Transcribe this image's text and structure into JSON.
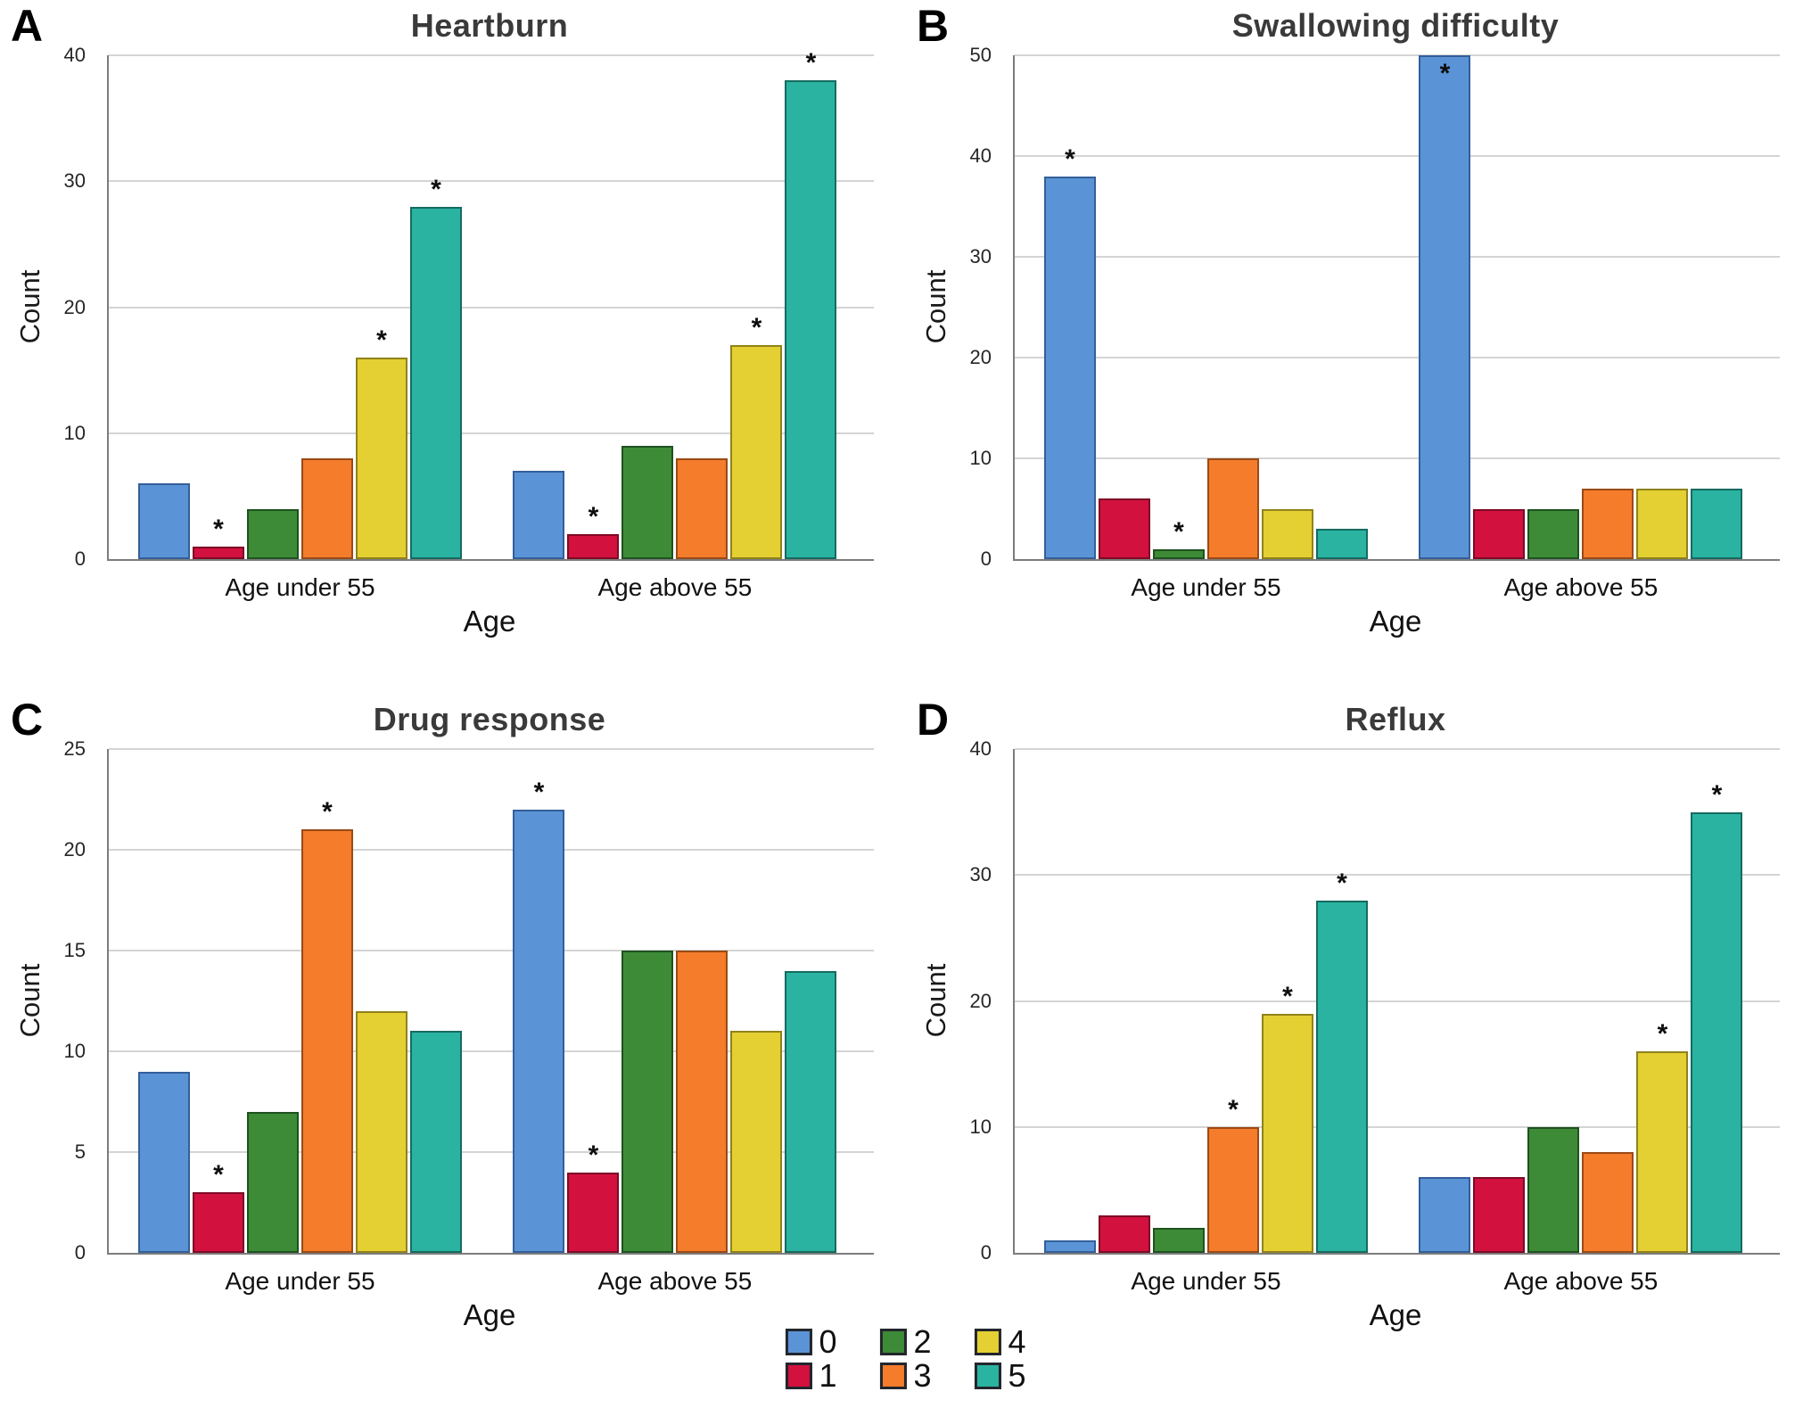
{
  "significance_marker": "*",
  "legend": {
    "position": "bottom-center",
    "entries": [
      {
        "label": "0",
        "color": "#5B94D6",
        "border": "#335F9A"
      },
      {
        "label": "1",
        "color": "#D2113F",
        "border": "#7E0A26"
      },
      {
        "label": "2",
        "color": "#3D8B37",
        "border": "#1E5220"
      },
      {
        "label": "3",
        "color": "#F47C2B",
        "border": "#9A4A15"
      },
      {
        "label": "4",
        "color": "#E4D032",
        "border": "#8F821A"
      },
      {
        "label": "5",
        "color": "#2BB3A2",
        "border": "#156B60"
      }
    ]
  },
  "chart_data": [
    {
      "type": "bar",
      "panel": "A",
      "title": "Heartburn",
      "xlabel": "Age",
      "ylabel": "Count",
      "ylim": [
        0,
        40
      ],
      "yticks": [
        0,
        10,
        20,
        30,
        40
      ],
      "grid": true,
      "categories": [
        "Age under 55",
        "Age above 55"
      ],
      "series_labels": [
        "0",
        "1",
        "2",
        "3",
        "4",
        "5"
      ],
      "groups": [
        {
          "category": "Age under 55",
          "values": [
            6,
            1,
            4,
            8,
            16,
            28
          ],
          "significant": [
            false,
            true,
            false,
            false,
            true,
            true
          ]
        },
        {
          "category": "Age above 55",
          "values": [
            7,
            2,
            9,
            8,
            17,
            38
          ],
          "significant": [
            false,
            true,
            false,
            false,
            true,
            true
          ]
        }
      ]
    },
    {
      "type": "bar",
      "panel": "B",
      "title": "Swallowing difficulty",
      "xlabel": "Age",
      "ylabel": "Count",
      "ylim": [
        0,
        50
      ],
      "yticks": [
        0,
        10,
        20,
        30,
        40,
        50
      ],
      "grid": true,
      "categories": [
        "Age under 55",
        "Age above 55"
      ],
      "series_labels": [
        "0",
        "1",
        "2",
        "3",
        "4",
        "5"
      ],
      "groups": [
        {
          "category": "Age under 55",
          "values": [
            38,
            6,
            1,
            10,
            5,
            3
          ],
          "significant": [
            true,
            false,
            true,
            false,
            false,
            false
          ]
        },
        {
          "category": "Age above 55",
          "values": [
            50,
            5,
            5,
            7,
            7,
            7
          ],
          "significant": [
            true,
            false,
            false,
            false,
            false,
            false
          ]
        }
      ]
    },
    {
      "type": "bar",
      "panel": "C",
      "title": "Drug response",
      "xlabel": "Age",
      "ylabel": "Count",
      "ylim": [
        0,
        25
      ],
      "yticks": [
        0,
        5,
        10,
        15,
        20,
        25
      ],
      "grid": true,
      "categories": [
        "Age under 55",
        "Age above 55"
      ],
      "series_labels": [
        "0",
        "1",
        "2",
        "3",
        "4",
        "5"
      ],
      "groups": [
        {
          "category": "Age under 55",
          "values": [
            9,
            3,
            7,
            21,
            12,
            11
          ],
          "significant": [
            false,
            true,
            false,
            true,
            false,
            false
          ]
        },
        {
          "category": "Age above 55",
          "values": [
            22,
            4,
            15,
            15,
            11,
            14
          ],
          "significant": [
            true,
            true,
            false,
            false,
            false,
            false
          ]
        }
      ]
    },
    {
      "type": "bar",
      "panel": "D",
      "title": "Reflux",
      "xlabel": "Age",
      "ylabel": "Count",
      "ylim": [
        0,
        40
      ],
      "yticks": [
        0,
        10,
        20,
        30,
        40
      ],
      "grid": true,
      "categories": [
        "Age under 55",
        "Age above 55"
      ],
      "series_labels": [
        "0",
        "1",
        "2",
        "3",
        "4",
        "5"
      ],
      "groups": [
        {
          "category": "Age under 55",
          "values": [
            1,
            3,
            2,
            10,
            19,
            28
          ],
          "significant": [
            false,
            false,
            false,
            true,
            true,
            true
          ]
        },
        {
          "category": "Age above 55",
          "values": [
            6,
            6,
            10,
            8,
            16,
            35
          ],
          "significant": [
            false,
            false,
            false,
            false,
            true,
            true
          ]
        }
      ]
    }
  ]
}
